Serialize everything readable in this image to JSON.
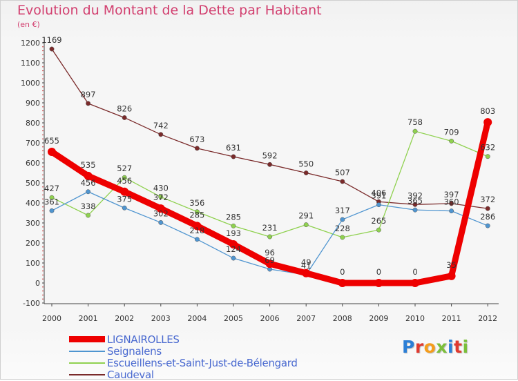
{
  "title": "Evolution du Montant de la Dette par Habitant",
  "unit": "(en €)",
  "logo": {
    "text": "Proxiti",
    "letter_colors": [
      "#2c7fd6",
      "#e03a2f",
      "#f59d1c",
      "#7bbf3a",
      "#2c7fd6",
      "#e03a2f",
      "#7bbf3a"
    ]
  },
  "chart_data": {
    "type": "line",
    "x": [
      "2000",
      "2001",
      "2002",
      "2003",
      "2004",
      "2005",
      "2006",
      "2007",
      "2008",
      "2009",
      "2010",
      "2011",
      "2012"
    ],
    "ylim": [
      -100,
      1200
    ],
    "yticks": [
      -100,
      0,
      100,
      200,
      300,
      400,
      500,
      600,
      700,
      800,
      900,
      1000,
      1100,
      1200
    ],
    "grid": false,
    "legend_placement": "bottom-left",
    "series": [
      {
        "name": "Caudeval",
        "color": "#7a2a2a",
        "values": [
          1169,
          897,
          826,
          742,
          673,
          631,
          592,
          550,
          507,
          406,
          392,
          397,
          372
        ]
      },
      {
        "name": "Escueillens-et-Saint-Just-de-Bélengard",
        "color": "#8fd14f",
        "values": [
          427,
          338,
          527,
          430,
          356,
          285,
          231,
          291,
          228,
          265,
          758,
          709,
          632
        ]
      },
      {
        "name": "Seignalens",
        "color": "#4f95d0",
        "values": [
          361,
          456,
          375,
          302,
          218,
          124,
          69,
          41,
          317,
          391,
          365,
          360,
          286
        ]
      },
      {
        "name": "LIGNAIROLLES",
        "color": "#ee0000",
        "values": [
          655,
          535,
          456,
          372,
          285,
          193,
          96,
          49,
          0,
          0,
          0,
          35,
          803
        ]
      }
    ],
    "legend_order": [
      "LIGNAIROLLES",
      "Seignalens",
      "Escueillens-et-Saint-Just-de-Bélengard",
      "Caudeval"
    ]
  }
}
